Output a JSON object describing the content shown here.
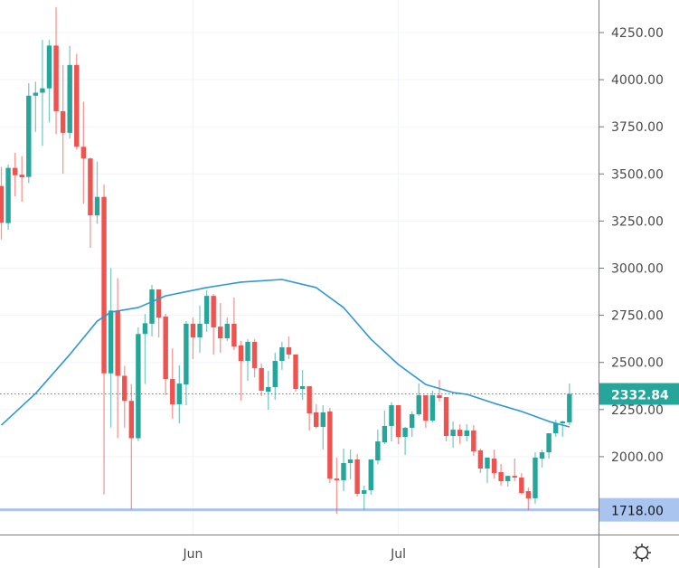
{
  "chart_data": {
    "type": "candlestick",
    "candle_fields": [
      "date",
      "open",
      "high",
      "low",
      "close"
    ],
    "candles": [
      [
        "May 4",
        3436,
        3537,
        3152,
        3241
      ],
      [
        "May 5",
        3239,
        3550,
        3204,
        3532
      ],
      [
        "May 6",
        3532,
        3612,
        3381,
        3493
      ],
      [
        "May 7",
        3496,
        3594,
        3353,
        3482
      ],
      [
        "May 8",
        3484,
        3981,
        3452,
        3915
      ],
      [
        "May 9",
        3915,
        3989,
        3723,
        3931
      ],
      [
        "May 10",
        3931,
        4211,
        3649,
        3954
      ],
      [
        "May 11",
        3954,
        4211,
        3773,
        4181
      ],
      [
        "May 12",
        4181,
        4385,
        3711,
        3833
      ],
      [
        "May 13",
        3833,
        4078,
        3502,
        3718
      ],
      [
        "May 14",
        3718,
        4179,
        3688,
        4078
      ],
      [
        "May 15",
        4078,
        4137,
        3629,
        3644
      ],
      [
        "May 16",
        3644,
        3883,
        3342,
        3582
      ],
      [
        "May 17",
        3582,
        3587,
        3108,
        3280
      ],
      [
        "May 18",
        3280,
        3566,
        3236,
        3378
      ],
      [
        "May 19",
        3378,
        3443,
        1800,
        2442
      ],
      [
        "May 20",
        2442,
        3000,
        2154,
        2775
      ],
      [
        "May 21",
        2775,
        2947,
        2098,
        2429
      ],
      [
        "May 22",
        2429,
        2482,
        2154,
        2296
      ],
      [
        "May 23",
        2296,
        2385,
        1720,
        2098
      ],
      [
        "May 24",
        2098,
        2686,
        2083,
        2651
      ],
      [
        "May 25",
        2651,
        2757,
        2385,
        2708
      ],
      [
        "May 26",
        2705,
        2911,
        2638,
        2887
      ],
      [
        "May 27",
        2887,
        2887,
        2633,
        2738
      ],
      [
        "May 28",
        2743,
        2758,
        2326,
        2412
      ],
      [
        "May 29",
        2412,
        2575,
        2201,
        2278
      ],
      [
        "May 30",
        2278,
        2484,
        2177,
        2388
      ],
      [
        "May 31",
        2383,
        2719,
        2273,
        2705
      ],
      [
        "Jun 1",
        2705,
        2738,
        2518,
        2633
      ],
      [
        "Jun 2",
        2633,
        2801,
        2551,
        2705
      ],
      [
        "Jun 3",
        2705,
        2882,
        2662,
        2853
      ],
      [
        "Jun 4",
        2853,
        2863,
        2542,
        2686
      ],
      [
        "Jun 5",
        2690,
        2815,
        2551,
        2628
      ],
      [
        "Jun 6",
        2628,
        2738,
        2614,
        2705
      ],
      [
        "Jun 7",
        2705,
        2844,
        2566,
        2585
      ],
      [
        "Jun 8",
        2590,
        2614,
        2297,
        2508
      ],
      [
        "Jun 9",
        2508,
        2623,
        2403,
        2609
      ],
      [
        "Jun 10",
        2609,
        2623,
        2422,
        2470
      ],
      [
        "Jun 11",
        2470,
        2494,
        2321,
        2350
      ],
      [
        "Jun 12",
        2345,
        2455,
        2249,
        2369
      ],
      [
        "Jun 13",
        2369,
        2551,
        2302,
        2508
      ],
      [
        "Jun 14",
        2508,
        2609,
        2460,
        2580
      ],
      [
        "Jun 15",
        2580,
        2638,
        2518,
        2542
      ],
      [
        "Jun 16",
        2542,
        2542,
        2345,
        2359
      ],
      [
        "Jun 17",
        2359,
        2460,
        2302,
        2374
      ],
      [
        "Jun 18",
        2374,
        2374,
        2139,
        2230
      ],
      [
        "Jun 19",
        2235,
        2278,
        2150,
        2158
      ],
      [
        "Jun 20",
        2158,
        2273,
        2038,
        2235
      ],
      [
        "Jun 21",
        2240,
        2259,
        1860,
        1884
      ],
      [
        "Jun 22",
        1884,
        1995,
        1697,
        1875
      ],
      [
        "Jun 23",
        1875,
        2043,
        1817,
        1966
      ],
      [
        "Jun 24",
        1966,
        2038,
        1880,
        1985
      ],
      [
        "Jun 25",
        1985,
        2014,
        1788,
        1803
      ],
      [
        "Jun 26",
        1803,
        1846,
        1716,
        1822
      ],
      [
        "Jun 27",
        1822,
        1985,
        1798,
        1985
      ],
      [
        "Jun 28",
        1980,
        2143,
        1961,
        2081
      ],
      [
        "Jun 29",
        2076,
        2244,
        2067,
        2163
      ],
      [
        "Jun 30",
        2163,
        2288,
        2081,
        2273
      ],
      [
        "Jul 1",
        2273,
        2273,
        2067,
        2105
      ],
      [
        "Jul 2",
        2105,
        2158,
        2009,
        2153
      ],
      [
        "Jul 3",
        2153,
        2240,
        2105,
        2225
      ],
      [
        "Jul 4",
        2225,
        2388,
        2215,
        2326
      ],
      [
        "Jul 5",
        2326,
        2326,
        2153,
        2191
      ],
      [
        "Jul 6",
        2191,
        2350,
        2182,
        2326
      ],
      [
        "Jul 7",
        2326,
        2408,
        2292,
        2311
      ],
      [
        "Jul 8",
        2316,
        2316,
        2081,
        2110
      ],
      [
        "Jul 9",
        2110,
        2187,
        2047,
        2143
      ],
      [
        "Jul 10",
        2143,
        2172,
        2067,
        2110
      ],
      [
        "Jul 11",
        2110,
        2172,
        2081,
        2139
      ],
      [
        "Jul 12",
        2139,
        2167,
        2004,
        2028
      ],
      [
        "Jul 13",
        2033,
        2043,
        1913,
        1937
      ],
      [
        "Jul 14",
        1937,
        1995,
        1860,
        1995
      ],
      [
        "Jul 15",
        1990,
        2038,
        1884,
        1913
      ],
      [
        "Jul 16",
        1918,
        1961,
        1846,
        1870
      ],
      [
        "Jul 17",
        1870,
        1898,
        1841,
        1898
      ],
      [
        "Jul 18",
        1898,
        1990,
        1870,
        1889
      ],
      [
        "Jul 19",
        1889,
        1913,
        1800,
        1807
      ],
      [
        "Jul 20",
        1817,
        1836,
        1716,
        1779
      ],
      [
        "Jul 21",
        1779,
        2023,
        1750,
        1995
      ],
      [
        "Jul 22",
        1990,
        2038,
        1942,
        2023
      ],
      [
        "Jul 23",
        2023,
        2124,
        1990,
        2124
      ],
      [
        "Jul 24",
        2124,
        2196,
        2105,
        2177
      ],
      [
        "Jul 25",
        2177,
        2191,
        2105,
        2187
      ],
      [
        "Jul 26",
        2182,
        2388,
        2167,
        2332.84
      ]
    ],
    "moving_average": [
      [
        "May 4",
        2167
      ],
      [
        "May 9",
        2335
      ],
      [
        "May 14",
        2542
      ],
      [
        "May 18",
        2719
      ],
      [
        "May 20",
        2767
      ],
      [
        "May 24",
        2791
      ],
      [
        "May 28",
        2853
      ],
      [
        "Jun 3",
        2897
      ],
      [
        "Jun 8",
        2926
      ],
      [
        "Jun 14",
        2940
      ],
      [
        "Jun 19",
        2897
      ],
      [
        "Jun 23",
        2791
      ],
      [
        "Jun 27",
        2623
      ],
      [
        "Jul 1",
        2489
      ],
      [
        "Jul 5",
        2383
      ],
      [
        "Jul 9",
        2340
      ],
      [
        "Jul 11",
        2331
      ],
      [
        "Jul 15",
        2283
      ],
      [
        "Jul 19",
        2240
      ],
      [
        "Jul 23",
        2187
      ],
      [
        "Jul 26",
        2158
      ]
    ],
    "y_ticks": [
      "4250.00",
      "4000.00",
      "3750.00",
      "3500.00",
      "3250.00",
      "3000.00",
      "2750.00",
      "2500.00",
      "2250.00",
      "2000.00"
    ],
    "x_ticks": [
      {
        "label": "Jun",
        "date": "Jun 1"
      },
      {
        "label": "Jul",
        "date": "Jul 1"
      }
    ],
    "ylim": [
      1620,
      4420
    ],
    "grid": true,
    "current_price": {
      "value": 2332.84,
      "label": "2332.84"
    },
    "horizontal_line": {
      "value": 1718,
      "label": "1718.00"
    },
    "colors": {
      "up": "#26a69a",
      "down": "#ef5350",
      "ma": "#2f96d8",
      "hline": "#a9c4ee",
      "hline_tag": "#a9c4ee",
      "grid": "#f0f3fa",
      "axis": "#777777"
    }
  },
  "toolbar": {
    "settings_icon": "settings-gear-icon"
  }
}
